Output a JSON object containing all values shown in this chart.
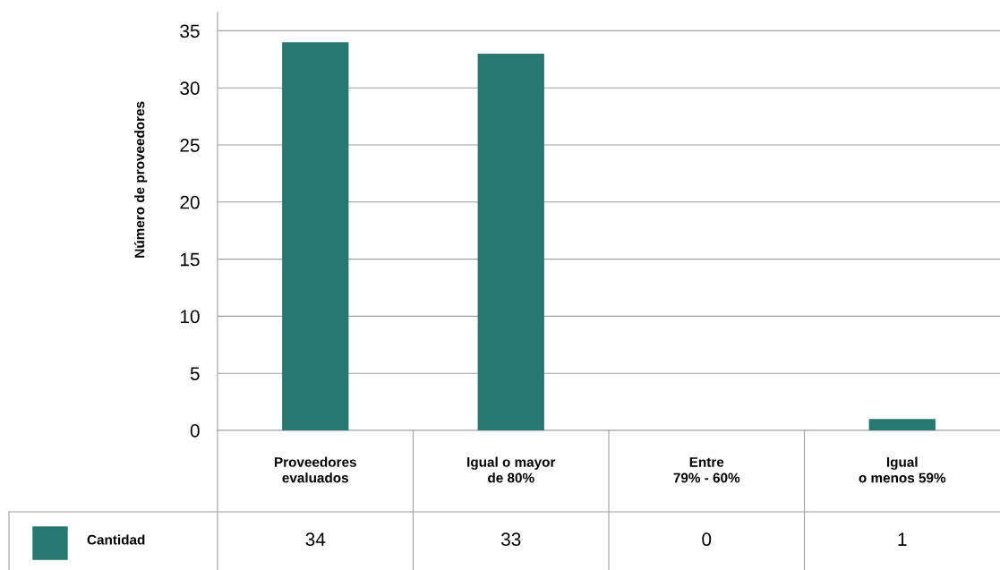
{
  "chart_data": {
    "type": "bar",
    "ylabel": "Número de proveedores",
    "categories": [
      "Proveedores\nevaluados",
      "Igual o mayor\nde 80%",
      "Entre\n79% - 60%",
      "Igual\no menos 59%"
    ],
    "series": [
      {
        "name": "Cantidad",
        "color": "#267870",
        "values": [
          34,
          33,
          0,
          1
        ]
      }
    ],
    "ylim": [
      0,
      36.6
    ],
    "yticks": [
      0,
      5,
      10,
      15,
      20,
      25,
      30,
      35
    ],
    "grid": "y",
    "data_labels": true,
    "legend": "bottom left"
  }
}
